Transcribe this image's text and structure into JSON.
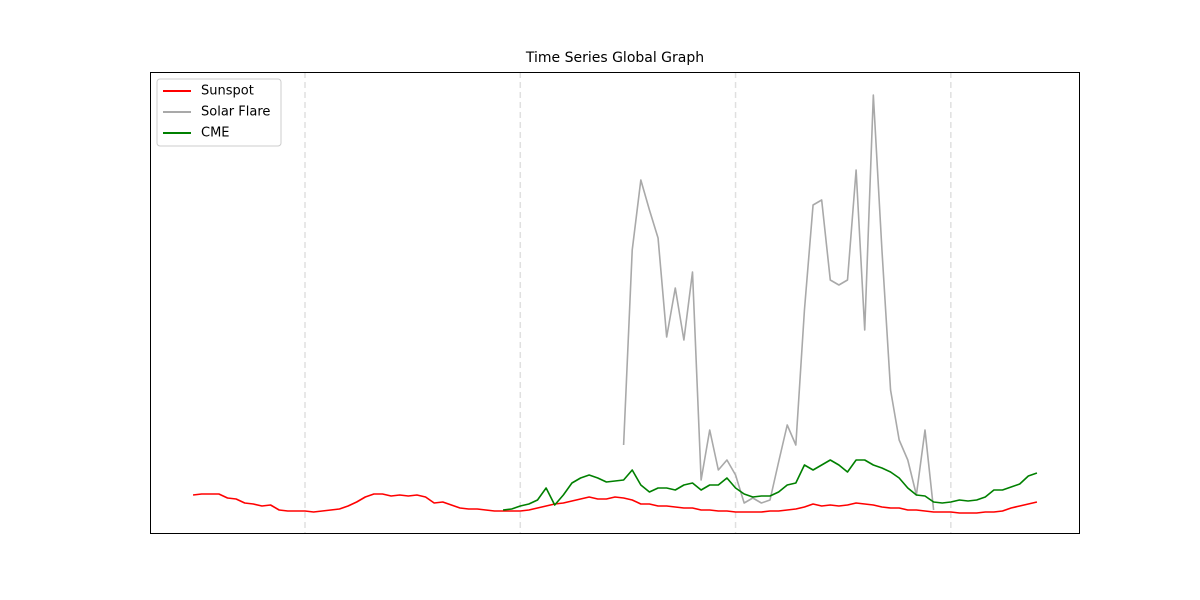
{
  "chart_data": {
    "type": "line",
    "title": "Time Series Global Graph",
    "x": [
      24,
      26,
      28,
      30,
      32,
      34,
      36,
      38,
      40,
      42,
      44,
      46,
      48,
      50,
      52,
      54,
      56,
      58,
      60,
      62,
      64,
      66,
      68,
      70,
      72,
      74,
      76,
      78,
      80,
      82,
      84,
      86,
      88,
      90,
      92,
      94,
      96,
      98,
      100,
      102,
      104,
      106,
      108,
      110,
      112,
      114,
      116,
      118,
      120,
      122,
      124,
      126,
      128,
      130,
      132,
      134,
      136,
      138,
      140,
      142,
      144,
      146,
      148,
      150,
      152,
      154,
      156,
      158,
      160,
      162,
      164,
      166,
      168,
      170,
      172,
      174,
      176,
      178,
      180,
      182,
      184,
      186,
      188,
      190,
      192,
      194,
      196,
      198,
      200,
      202,
      204,
      206,
      208,
      210,
      212,
      214,
      216,
      218,
      220
    ],
    "series": [
      {
        "name": "Sunspot",
        "color": "#ff0000",
        "values": [
          39,
          40,
          40,
          40,
          36,
          35,
          31,
          30,
          28,
          29,
          24,
          23,
          23,
          23,
          22,
          23,
          24,
          25,
          28,
          32,
          37,
          40,
          40,
          38,
          39,
          38,
          39,
          37,
          31,
          32,
          29,
          26,
          25,
          25,
          24,
          23,
          23,
          23,
          23,
          24,
          26,
          28,
          30,
          31,
          33,
          35,
          37,
          35,
          35,
          37,
          36,
          34,
          30,
          30,
          28,
          28,
          27,
          26,
          26,
          24,
          24,
          23,
          23,
          22,
          22,
          22,
          22,
          23,
          23,
          24,
          25,
          27,
          30,
          28,
          29,
          28,
          29,
          31,
          30,
          29,
          27,
          26,
          26,
          24,
          24,
          23,
          22,
          22,
          22,
          21,
          21,
          21,
          22,
          22,
          23,
          26,
          28,
          30,
          32
        ]
      },
      {
        "name": "Solar Flare",
        "color": "#a9a9a9",
        "values": [
          null,
          null,
          null,
          null,
          null,
          null,
          null,
          null,
          null,
          null,
          null,
          null,
          null,
          null,
          null,
          null,
          null,
          null,
          null,
          null,
          null,
          null,
          null,
          null,
          null,
          null,
          null,
          null,
          null,
          null,
          null,
          null,
          null,
          null,
          null,
          null,
          null,
          null,
          null,
          null,
          null,
          null,
          null,
          null,
          null,
          null,
          null,
          null,
          null,
          null,
          89,
          284,
          354,
          324,
          296,
          197,
          246,
          194,
          262,
          54,
          104,
          64,
          74,
          59,
          31,
          36,
          31,
          34,
          72,
          109,
          89,
          224,
          329,
          334,
          254,
          249,
          254,
          364,
          204,
          439,
          284,
          144,
          94,
          74,
          39,
          104,
          24,
          null,
          null,
          null,
          null,
          null,
          null,
          null,
          null,
          null,
          null,
          null,
          null
        ]
      },
      {
        "name": "CME",
        "color": "#008000",
        "values": [
          null,
          null,
          null,
          null,
          null,
          null,
          null,
          null,
          null,
          null,
          null,
          null,
          null,
          null,
          null,
          null,
          null,
          null,
          null,
          null,
          null,
          null,
          null,
          null,
          null,
          null,
          null,
          null,
          null,
          null,
          null,
          null,
          null,
          null,
          null,
          null,
          24,
          25,
          28,
          30,
          34,
          46,
          29,
          39,
          51,
          56,
          59,
          56,
          52,
          53,
          54,
          64,
          49,
          42,
          46,
          46,
          44,
          49,
          51,
          44,
          49,
          49,
          56,
          46,
          40,
          37,
          38,
          38,
          42,
          49,
          51,
          69,
          64,
          69,
          74,
          69,
          62,
          74,
          74,
          69,
          66,
          62,
          56,
          46,
          39,
          38,
          32,
          31,
          32,
          34,
          33,
          34,
          37,
          44,
          44,
          47,
          50,
          58,
          61
        ]
      }
    ],
    "xlim": [
      14,
      230
    ],
    "ylim": [
      0,
      462
    ],
    "xticks": [
      50,
      100,
      150,
      200
    ],
    "grid": "x",
    "legend": "upper left"
  }
}
